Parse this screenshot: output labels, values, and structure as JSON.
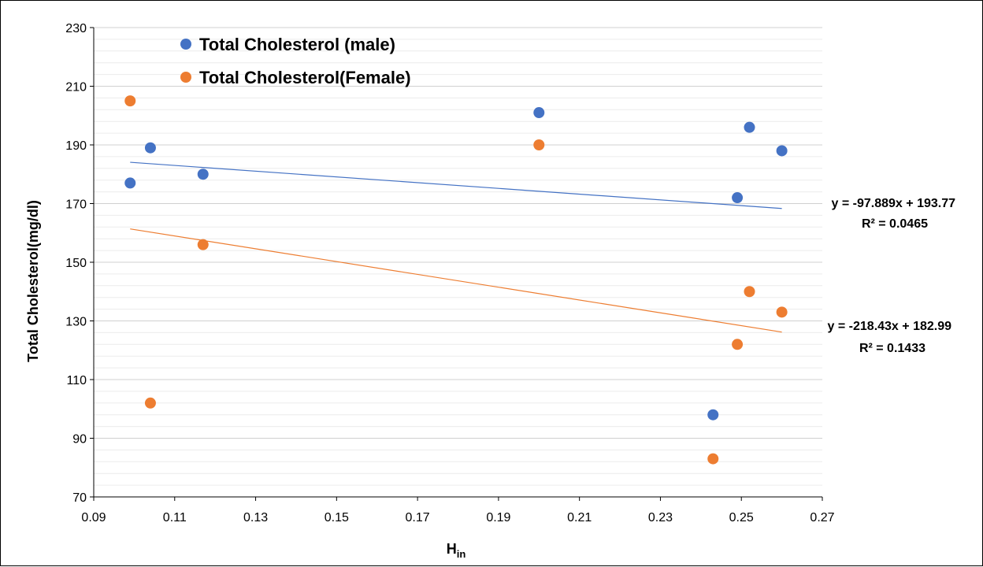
{
  "chart_data": {
    "type": "scatter",
    "title": "",
    "xlabel": "H",
    "xlabel_subscript": "in",
    "ylabel": "Total Cholesterol(mg/dl)",
    "xlim": [
      0.09,
      0.27
    ],
    "ylim": [
      70,
      230
    ],
    "x_ticks": [
      "0.09",
      "0.11",
      "0.13",
      "0.15",
      "0.17",
      "0.19",
      "0.21",
      "0.23",
      "0.25",
      "0.27"
    ],
    "y_ticks": [
      "70",
      "90",
      "110",
      "130",
      "150",
      "170",
      "190",
      "210",
      "230"
    ],
    "x_tick_values": [
      0.09,
      0.11,
      0.13,
      0.15,
      0.17,
      0.19,
      0.21,
      0.23,
      0.25,
      0.27
    ],
    "y_tick_values": [
      70,
      90,
      110,
      130,
      150,
      170,
      190,
      210,
      230
    ],
    "y_minor_step": 4,
    "grid": true,
    "legend_position": "top-left",
    "series": [
      {
        "name": "Total Cholesterol (male)",
        "color": "#4472C4",
        "x": [
          0.099,
          0.104,
          0.117,
          0.2,
          0.243,
          0.249,
          0.252,
          0.26
        ],
        "y": [
          177,
          189,
          180,
          201,
          98,
          172,
          196,
          188
        ],
        "trendline": {
          "slope": -97.889,
          "intercept": 193.77,
          "x_range": [
            0.099,
            0.26
          ],
          "equation": "y = -97.889x + 193.77",
          "r_squared": "R² = 0.0465"
        }
      },
      {
        "name": "Total Cholesterol(Female)",
        "color": "#ED7D31",
        "x": [
          0.099,
          0.104,
          0.117,
          0.2,
          0.243,
          0.249,
          0.252,
          0.26
        ],
        "y": [
          205,
          102,
          156,
          190,
          83,
          122,
          140,
          133
        ],
        "trendline": {
          "slope": -218.43,
          "intercept": 182.99,
          "x_range": [
            0.099,
            0.26
          ],
          "equation": "y = -218.43x + 182.99",
          "r_squared": "R² = 0.1433"
        }
      }
    ]
  }
}
